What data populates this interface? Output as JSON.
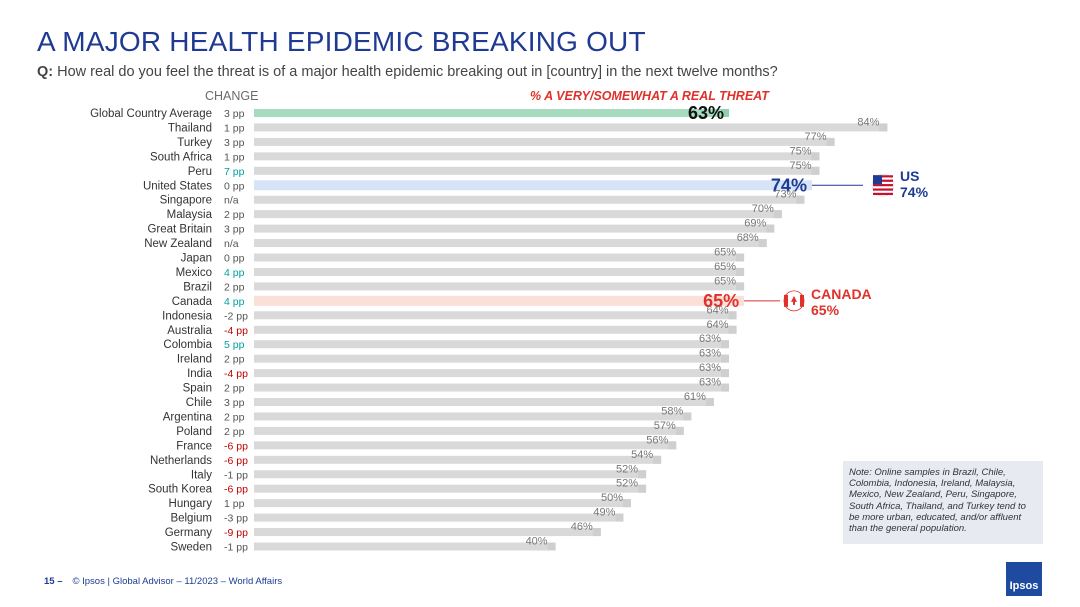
{
  "title": "A MAJOR HEALTH EPIDEMIC BREAKING OUT",
  "question_prefix": "Q:",
  "question": "How real do you feel the threat is of a major health epidemic breaking out in [country] in the next twelve months?",
  "change_header": "CHANGE",
  "pct_header": "% A VERY/SOMEWHAT A REAL THREAT",
  "note": "Note: Online samples in Brazil, Chile, Colombia, Indonesia, Ireland, Malaysia, Mexico, New Zealand, Peru, Singapore, South Africa, Thailand, and Turkey tend to be more urban, educated, and/or affluent than the general population.",
  "footer": {
    "page": "15 –",
    "text": "© Ipsos | Global Advisor – 11/2023 – World Affairs"
  },
  "logo": "Ipsos",
  "callouts": {
    "us": {
      "name": "US",
      "value": "74%"
    },
    "canada": {
      "name": "CANADA",
      "value": "65%"
    }
  },
  "colors": {
    "default_bar": "#d9d9d9",
    "global_bar": "#a6dbc0",
    "us_bar": "#d6e4f7",
    "canada_bar": "#fbe0da",
    "increase": "#00a0a0",
    "decrease": "#c00000",
    "neutral": "#555555",
    "us": "#1f3a93",
    "canada": "#e0312b"
  },
  "chart_data": {
    "type": "bar",
    "orientation": "horizontal",
    "xlim": [
      0,
      100
    ],
    "categories": [
      "Global Country Average",
      "Thailand",
      "Turkey",
      "South Africa",
      "Peru",
      "United States",
      "Singapore",
      "Malaysia",
      "Great Britain",
      "New Zealand",
      "Japan",
      "Mexico",
      "Brazil",
      "Canada",
      "Indonesia",
      "Australia",
      "Colombia",
      "Ireland",
      "India",
      "Spain",
      "Chile",
      "Argentina",
      "Poland",
      "France",
      "Netherlands",
      "Italy",
      "South Korea",
      "Hungary",
      "Belgium",
      "Germany",
      "Sweden"
    ],
    "values": [
      63,
      84,
      77,
      75,
      75,
      74,
      73,
      70,
      69,
      68,
      65,
      65,
      65,
      65,
      64,
      64,
      63,
      63,
      63,
      63,
      61,
      58,
      57,
      56,
      54,
      52,
      52,
      50,
      49,
      46,
      40
    ],
    "value_labels": [
      "63%",
      "84%",
      "77%",
      "75%",
      "75%",
      "74%",
      "73%",
      "70%",
      "69%",
      "68%",
      "65%",
      "65%",
      "65%",
      "65%",
      "64%",
      "64%",
      "63%",
      "63%",
      "63%",
      "63%",
      "61%",
      "58%",
      "57%",
      "56%",
      "54%",
      "52%",
      "52%",
      "50%",
      "49%",
      "46%",
      "40%"
    ],
    "change": [
      "3 pp",
      "1 pp",
      "3 pp",
      "1 pp",
      "7 pp",
      "0 pp",
      "n/a",
      "2 pp",
      "3 pp",
      "n/a",
      "0 pp",
      "4 pp",
      "2 pp",
      "4 pp",
      "-2 pp",
      "-4 pp",
      "5 pp",
      "2 pp",
      "-4 pp",
      "2 pp",
      "3 pp",
      "2 pp",
      "2 pp",
      "-6 pp",
      "-6 pp",
      "-1 pp",
      "-6 pp",
      "1 pp",
      "-3 pp",
      "-9 pp",
      "-1 pp"
    ],
    "change_status": [
      "neutral",
      "neutral",
      "neutral",
      "neutral",
      "increase",
      "neutral",
      "neutral",
      "neutral",
      "neutral",
      "neutral",
      "neutral",
      "increase",
      "neutral",
      "increase",
      "neutral",
      "decrease",
      "increase",
      "neutral",
      "decrease",
      "neutral",
      "neutral",
      "neutral",
      "neutral",
      "decrease",
      "decrease",
      "neutral",
      "decrease",
      "neutral",
      "neutral",
      "decrease",
      "neutral"
    ],
    "highlights": {
      "Global Country Average": "global",
      "United States": "us",
      "Canada": "canada"
    }
  }
}
